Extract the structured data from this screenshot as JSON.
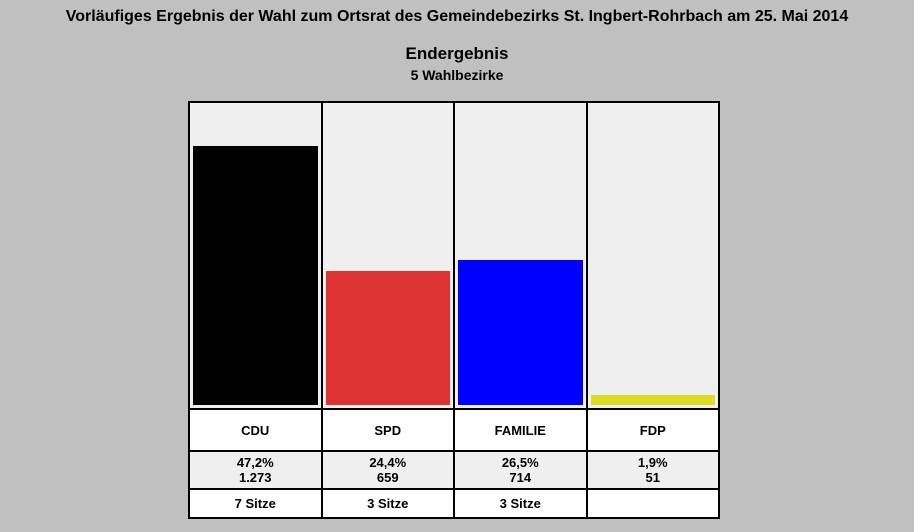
{
  "header": {
    "title": "Vorläufiges Ergebnis der Wahl zum Ortsrat des Gemeindebezirks St. Ingbert-Rohrbach am 25. Mai 2014",
    "subtitle": "Endergebnis",
    "subtitle2": "5 Wahlbezirke"
  },
  "chart_data": {
    "type": "bar",
    "categories": [
      "CDU",
      "SPD",
      "FAMILIE",
      "FDP"
    ],
    "values": [
      47.2,
      24.4,
      26.5,
      1.9
    ],
    "ylim": [
      0,
      55
    ],
    "grid": false,
    "colors": [
      "#000000",
      "#dd3333",
      "#0000ff",
      "#dddd22"
    ],
    "percent_labels": [
      "47,2%",
      "24,4%",
      "26,5%",
      "1,9%"
    ],
    "vote_labels": [
      "1.273",
      "659",
      "714",
      "51"
    ],
    "seat_labels": [
      "7 Sitze",
      "3 Sitze",
      "3 Sitze",
      ""
    ]
  }
}
